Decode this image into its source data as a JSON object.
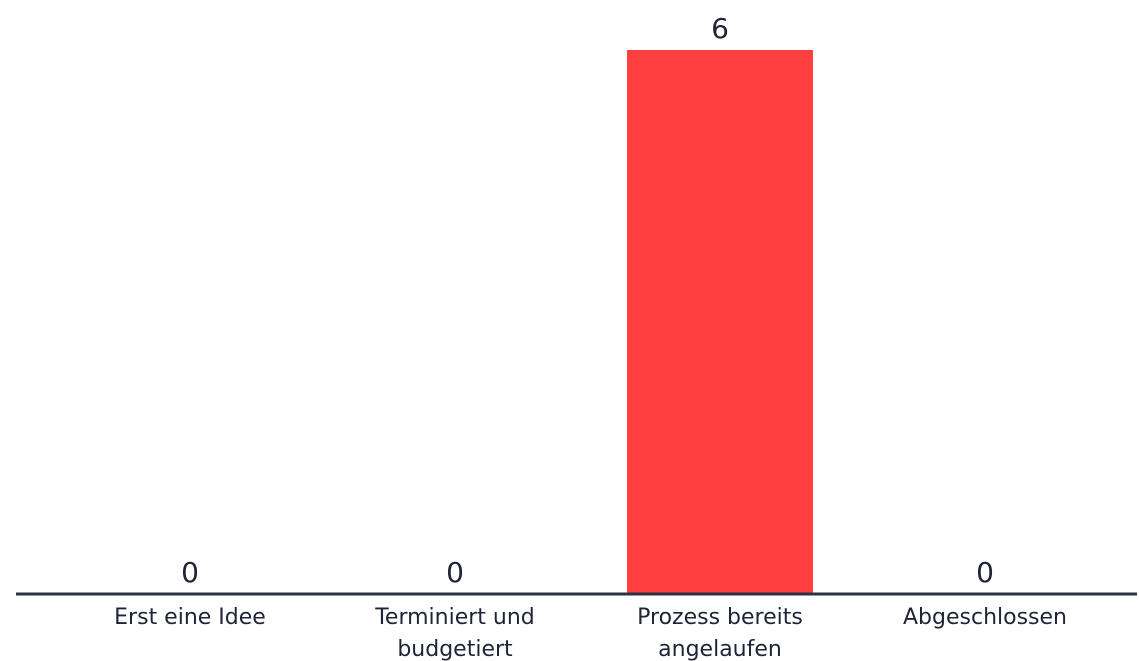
{
  "chart_data": {
    "type": "bar",
    "categories": [
      [
        "Erst eine Idee"
      ],
      [
        "Terminiert und",
        "budgetiert"
      ],
      [
        "Prozess bereits",
        "angelaufen"
      ],
      [
        "Abgeschlossen"
      ]
    ],
    "values": [
      0,
      0,
      6,
      0
    ],
    "value_labels": [
      "0",
      "0",
      "6",
      "0"
    ],
    "ylim": [
      0,
      6
    ],
    "grid": false,
    "colors": {
      "bar": "#ff3f3f",
      "axis": "#2b3142",
      "text": "#1f2536"
    }
  }
}
